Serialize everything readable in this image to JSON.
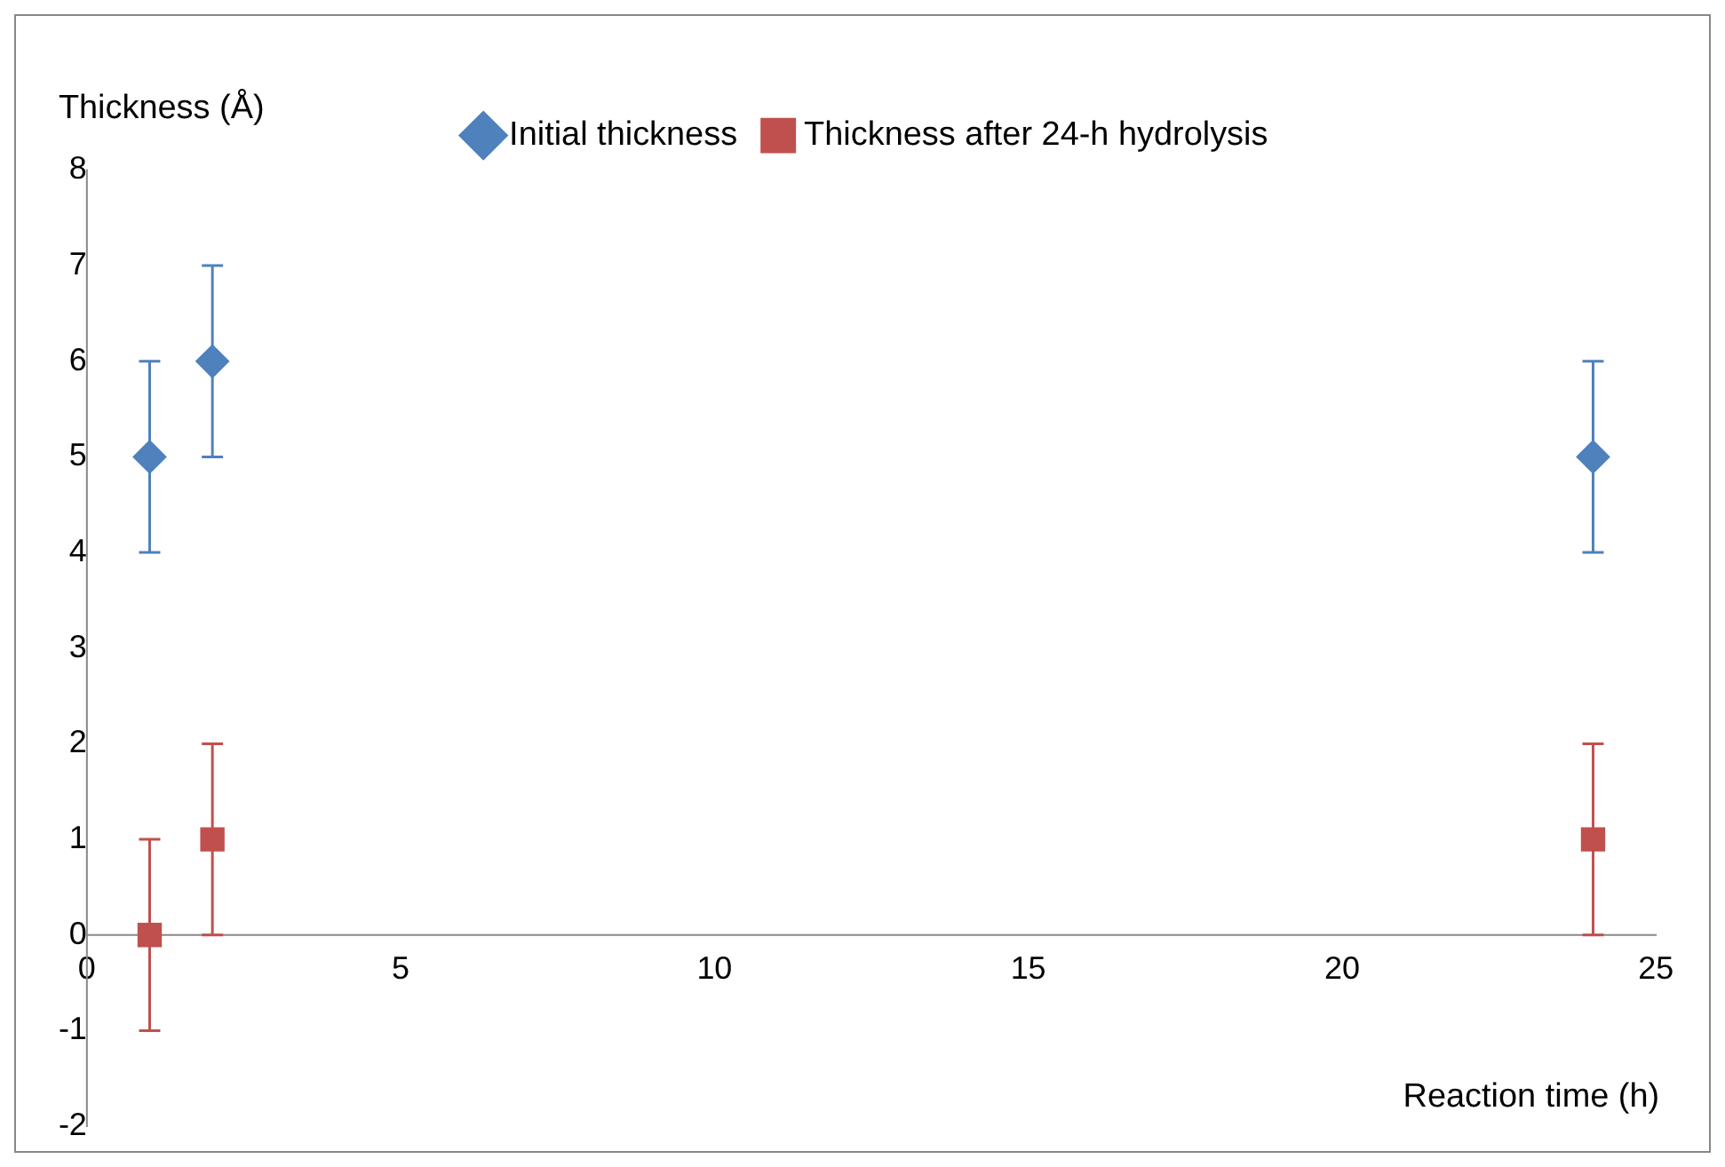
{
  "chart_data": {
    "type": "scatter",
    "xlabel": "Reaction time (h)",
    "ylabel": "Thickness (Å)",
    "x": [
      1,
      2,
      24
    ],
    "series": [
      {
        "name": "Initial thickness",
        "color": "#4f81bd",
        "marker": "diamond",
        "values": [
          5,
          6,
          5
        ],
        "errors": [
          1,
          1,
          1
        ]
      },
      {
        "name": "Thickness after 24-h hydrolysis",
        "color": "#c0504d",
        "marker": "square",
        "values": [
          0,
          1,
          1
        ],
        "errors": [
          1,
          1,
          1
        ]
      }
    ],
    "xlim": [
      0,
      25
    ],
    "xticks": [
      0,
      5,
      10,
      15,
      20,
      25
    ],
    "ylim": [
      -2,
      8
    ],
    "yticks": [
      -2,
      -1,
      0,
      1,
      2,
      3,
      4,
      5,
      6,
      7,
      8
    ],
    "grid": false,
    "legend": "top"
  }
}
